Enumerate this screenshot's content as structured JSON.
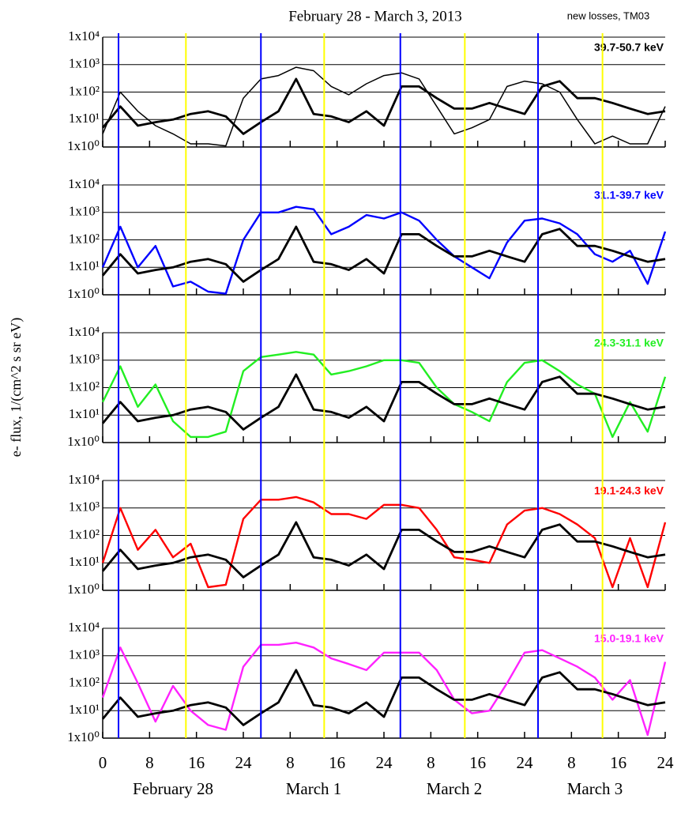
{
  "title": "February 28 - March 3, 2013",
  "subtitle": "new losses, TM03",
  "ylabel": "e- flux, 1/(cm^2 s sr eV)",
  "day_labels": [
    "February 28",
    "March 1",
    "March 2",
    "March 3"
  ],
  "chart_data": [
    {
      "type": "line",
      "log_scale": true,
      "grid": true,
      "ylim": [
        1,
        10000
      ],
      "yticks": [
        {
          "value": 1,
          "label": "1x10⁰"
        },
        {
          "value": 10,
          "label": "1x10¹"
        },
        {
          "value": 100,
          "label": "1x10²"
        },
        {
          "value": 1000,
          "label": "1x10³"
        },
        {
          "value": 10000,
          "label": "1x10⁴"
        }
      ],
      "xlim": [
        0,
        96
      ],
      "x": [
        0,
        3,
        6,
        9,
        12,
        15,
        18,
        21,
        24,
        27,
        30,
        33,
        36,
        39,
        42,
        45,
        48,
        51,
        54,
        57,
        60,
        63,
        66,
        69,
        72,
        75,
        78,
        81,
        84,
        87,
        90,
        93,
        96
      ],
      "markers": [
        {
          "x": 2.7,
          "color": "#0000ff"
        },
        {
          "x": 14.2,
          "color": "#ffff00"
        },
        {
          "x": 27,
          "color": "#0000ff"
        },
        {
          "x": 37.8,
          "color": "#ffff00"
        },
        {
          "x": 50.8,
          "color": "#0000ff"
        },
        {
          "x": 61.8,
          "color": "#ffff00"
        },
        {
          "x": 74.3,
          "color": "#0000ff"
        },
        {
          "x": 85.3,
          "color": "#ffff00"
        }
      ],
      "series": [
        {
          "name": "39.7-50.7 keV",
          "color": "#000000",
          "values": [
            3,
            100,
            20,
            6,
            3,
            1.3,
            1.3,
            1.1,
            60,
            300,
            400,
            800,
            600,
            160,
            80,
            200,
            400,
            500,
            300,
            30,
            3,
            5,
            10,
            160,
            250,
            200,
            100,
            10,
            1.3,
            2.5,
            1.3,
            1.3,
            30
          ]
        },
        {
          "color": "#000000",
          "values": [
            5,
            30,
            6,
            8,
            10,
            16,
            20,
            13,
            3,
            8,
            20,
            300,
            16,
            13,
            8,
            20,
            6,
            160,
            160,
            60,
            25,
            25,
            40,
            25,
            16,
            160,
            250,
            60,
            60,
            40,
            25,
            16,
            20
          ]
        }
      ]
    },
    {
      "type": "line",
      "log_scale": true,
      "grid": true,
      "ylim": [
        1,
        10000
      ],
      "yticks": [
        {
          "value": 1,
          "label": "1x10⁰"
        },
        {
          "value": 10,
          "label": "1x10¹"
        },
        {
          "value": 100,
          "label": "1x10²"
        },
        {
          "value": 1000,
          "label": "1x10³"
        },
        {
          "value": 10000,
          "label": "1x10⁴"
        }
      ],
      "xlim": [
        0,
        96
      ],
      "x": [
        0,
        3,
        6,
        9,
        12,
        15,
        18,
        21,
        24,
        27,
        30,
        33,
        36,
        39,
        42,
        45,
        48,
        51,
        54,
        57,
        60,
        63,
        66,
        69,
        72,
        75,
        78,
        81,
        84,
        87,
        90,
        93,
        96
      ],
      "markers": [
        {
          "x": 2.7,
          "color": "#0000ff"
        },
        {
          "x": 14.2,
          "color": "#ffff00"
        },
        {
          "x": 27,
          "color": "#0000ff"
        },
        {
          "x": 37.8,
          "color": "#ffff00"
        },
        {
          "x": 50.8,
          "color": "#0000ff"
        },
        {
          "x": 61.8,
          "color": "#ffff00"
        },
        {
          "x": 74.3,
          "color": "#0000ff"
        },
        {
          "x": 85.3,
          "color": "#ffff00"
        }
      ],
      "series": [
        {
          "name": "31.1-39.7 keV",
          "color": "#0000ff",
          "values": [
            10,
            300,
            10,
            60,
            2,
            3,
            1.3,
            1.1,
            100,
            1000,
            1000,
            1600,
            1300,
            160,
            300,
            800,
            600,
            1000,
            500,
            100,
            25,
            10,
            4,
            80,
            500,
            600,
            400,
            160,
            30,
            16,
            40,
            2.5,
            200
          ]
        },
        {
          "color": "#000000",
          "values": [
            5,
            30,
            6,
            8,
            10,
            16,
            20,
            13,
            3,
            8,
            20,
            300,
            16,
            13,
            8,
            20,
            6,
            160,
            160,
            60,
            25,
            25,
            40,
            25,
            16,
            160,
            250,
            60,
            60,
            40,
            25,
            16,
            20
          ]
        }
      ]
    },
    {
      "type": "line",
      "log_scale": true,
      "grid": true,
      "ylim": [
        1,
        10000
      ],
      "yticks": [
        {
          "value": 1,
          "label": "1x10⁰"
        },
        {
          "value": 10,
          "label": "1x10¹"
        },
        {
          "value": 100,
          "label": "1x10²"
        },
        {
          "value": 1000,
          "label": "1x10³"
        },
        {
          "value": 10000,
          "label": "1x10⁴"
        }
      ],
      "xlim": [
        0,
        96
      ],
      "x": [
        0,
        3,
        6,
        9,
        12,
        15,
        18,
        21,
        24,
        27,
        30,
        33,
        36,
        39,
        42,
        45,
        48,
        51,
        54,
        57,
        60,
        63,
        66,
        69,
        72,
        75,
        78,
        81,
        84,
        87,
        90,
        93,
        96
      ],
      "markers": [
        {
          "x": 2.7,
          "color": "#0000ff"
        },
        {
          "x": 14.2,
          "color": "#ffff00"
        },
        {
          "x": 27,
          "color": "#0000ff"
        },
        {
          "x": 37.8,
          "color": "#ffff00"
        },
        {
          "x": 50.8,
          "color": "#0000ff"
        },
        {
          "x": 61.8,
          "color": "#ffff00"
        },
        {
          "x": 74.3,
          "color": "#0000ff"
        },
        {
          "x": 85.3,
          "color": "#ffff00"
        }
      ],
      "series": [
        {
          "name": "24.3-31.1 keV",
          "color": "#22ee22",
          "values": [
            30,
            600,
            20,
            130,
            6,
            1.6,
            1.6,
            2.5,
            400,
            1300,
            1600,
            2000,
            1600,
            300,
            400,
            600,
            1000,
            1000,
            800,
            100,
            25,
            13,
            6,
            160,
            800,
            1000,
            400,
            130,
            60,
            1.6,
            30,
            2.5,
            250
          ]
        },
        {
          "color": "#000000",
          "values": [
            5,
            30,
            6,
            8,
            10,
            16,
            20,
            13,
            3,
            8,
            20,
            300,
            16,
            13,
            8,
            20,
            6,
            160,
            160,
            60,
            25,
            25,
            40,
            25,
            16,
            160,
            250,
            60,
            60,
            40,
            25,
            16,
            20
          ]
        }
      ]
    },
    {
      "type": "line",
      "log_scale": true,
      "grid": true,
      "ylim": [
        1,
        10000
      ],
      "yticks": [
        {
          "value": 1,
          "label": "1x10⁰"
        },
        {
          "value": 10,
          "label": "1x10¹"
        },
        {
          "value": 100,
          "label": "1x10²"
        },
        {
          "value": 1000,
          "label": "1x10³"
        },
        {
          "value": 10000,
          "label": "1x10⁴"
        }
      ],
      "xlim": [
        0,
        96
      ],
      "x": [
        0,
        3,
        6,
        9,
        12,
        15,
        18,
        21,
        24,
        27,
        30,
        33,
        36,
        39,
        42,
        45,
        48,
        51,
        54,
        57,
        60,
        63,
        66,
        69,
        72,
        75,
        78,
        81,
        84,
        87,
        90,
        93,
        96
      ],
      "markers": [
        {
          "x": 2.7,
          "color": "#0000ff"
        },
        {
          "x": 14.2,
          "color": "#ffff00"
        },
        {
          "x": 27,
          "color": "#0000ff"
        },
        {
          "x": 37.8,
          "color": "#ffff00"
        },
        {
          "x": 50.8,
          "color": "#0000ff"
        },
        {
          "x": 61.8,
          "color": "#ffff00"
        },
        {
          "x": 74.3,
          "color": "#0000ff"
        },
        {
          "x": 85.3,
          "color": "#ffff00"
        }
      ],
      "series": [
        {
          "name": "19.1-24.3 keV",
          "color": "#ff0000",
          "values": [
            10,
            1000,
            30,
            160,
            16,
            50,
            1.3,
            1.6,
            400,
            2000,
            2000,
            2500,
            1600,
            600,
            600,
            400,
            1300,
            1300,
            1000,
            160,
            16,
            13,
            10,
            250,
            800,
            1000,
            600,
            250,
            80,
            1.3,
            80,
            1.3,
            300
          ]
        },
        {
          "color": "#000000",
          "values": [
            5,
            30,
            6,
            8,
            10,
            16,
            20,
            13,
            3,
            8,
            20,
            300,
            16,
            13,
            8,
            20,
            6,
            160,
            160,
            60,
            25,
            25,
            40,
            25,
            16,
            160,
            250,
            60,
            60,
            40,
            25,
            16,
            20
          ]
        }
      ]
    },
    {
      "type": "line",
      "log_scale": true,
      "grid": true,
      "ylim": [
        1,
        10000
      ],
      "yticks": [
        {
          "value": 1,
          "label": "1x10⁰"
        },
        {
          "value": 10,
          "label": "1x10¹"
        },
        {
          "value": 100,
          "label": "1x10²"
        },
        {
          "value": 1000,
          "label": "1x10³"
        },
        {
          "value": 10000,
          "label": "1x10⁴"
        }
      ],
      "xlim": [
        0,
        96
      ],
      "x": [
        0,
        3,
        6,
        9,
        12,
        15,
        18,
        21,
        24,
        27,
        30,
        33,
        36,
        39,
        42,
        45,
        48,
        51,
        54,
        57,
        60,
        63,
        66,
        69,
        72,
        75,
        78,
        81,
        84,
        87,
        90,
        93,
        96
      ],
      "xticks": [
        0,
        8,
        16,
        24,
        {
          "value": 32,
          "label": "8"
        },
        {
          "value": 40,
          "label": "16"
        },
        {
          "value": 48,
          "label": "24"
        },
        {
          "value": 56,
          "label": "8"
        },
        {
          "value": 64,
          "label": "16"
        },
        {
          "value": 72,
          "label": "24"
        },
        {
          "value": 80,
          "label": "8"
        },
        {
          "value": 88,
          "label": "16"
        },
        {
          "value": 96,
          "label": "24"
        }
      ],
      "markers": [
        {
          "x": 2.7,
          "color": "#0000ff"
        },
        {
          "x": 14.2,
          "color": "#ffff00"
        },
        {
          "x": 27,
          "color": "#0000ff"
        },
        {
          "x": 37.8,
          "color": "#ffff00"
        },
        {
          "x": 50.8,
          "color": "#0000ff"
        },
        {
          "x": 61.8,
          "color": "#ffff00"
        },
        {
          "x": 74.3,
          "color": "#0000ff"
        },
        {
          "x": 85.3,
          "color": "#ffff00"
        }
      ],
      "series": [
        {
          "name": "15.0-19.1 keV",
          "color": "#ff22ff",
          "values": [
            30,
            2000,
            100,
            4,
            80,
            10,
            3,
            2,
            400,
            2500,
            2500,
            3000,
            2000,
            800,
            500,
            300,
            1300,
            1300,
            1300,
            300,
            25,
            8,
            10,
            100,
            1300,
            1600,
            800,
            400,
            160,
            25,
            130,
            1.3,
            600
          ]
        },
        {
          "color": "#000000",
          "values": [
            5,
            30,
            6,
            8,
            10,
            16,
            20,
            13,
            3,
            8,
            20,
            300,
            16,
            13,
            8,
            20,
            6,
            160,
            160,
            60,
            25,
            25,
            40,
            25,
            16,
            160,
            250,
            60,
            60,
            40,
            25,
            16,
            20
          ]
        }
      ]
    }
  ]
}
